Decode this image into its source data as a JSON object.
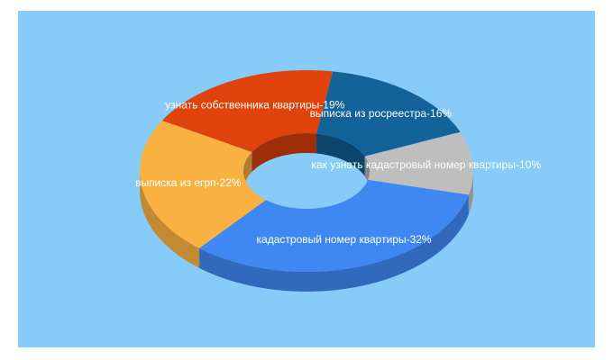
{
  "chart_data": {
    "type": "pie",
    "donut": true,
    "three_d": true,
    "categories": [
      "узнать собственника квартиры-19%",
      "выписка из росреестра-16%",
      "как узнать кадастровый номер квартиры-10%",
      "кадастровый номер квартиры-32%",
      "выписка из егрп-22%"
    ],
    "values": [
      19,
      16,
      10,
      32,
      22
    ],
    "colors": [
      "#e0420c",
      "#11639a",
      "#bebebe",
      "#3f87f1",
      "#f9b241"
    ],
    "background": "#87cbf9"
  }
}
